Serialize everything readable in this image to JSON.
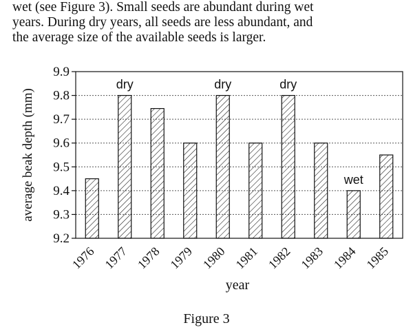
{
  "intro": {
    "lines": [
      "wet (see Figure 3). Small seeds are abundant during wet",
      "years. During dry years, all seeds are less abundant, and",
      "the average size of the available seeds is larger."
    ]
  },
  "caption": "Figure 3",
  "chart_data": {
    "type": "bar",
    "title": "",
    "xlabel": "year",
    "ylabel": "average beak depth (mm)",
    "ylim": [
      9.2,
      9.9
    ],
    "yticks": [
      "9.2",
      "9.3",
      "9.4",
      "9.5",
      "9.6",
      "9.7",
      "9.8",
      "9.9"
    ],
    "grid": true,
    "categories": [
      "1976",
      "1977",
      "1978",
      "1979",
      "1980",
      "1981",
      "1982",
      "1983",
      "1984",
      "1985"
    ],
    "values": [
      9.45,
      9.8,
      9.745,
      9.6,
      9.8,
      9.6,
      9.8,
      9.6,
      9.4,
      9.55
    ],
    "annotations": [
      {
        "category": "1977",
        "text": "dry"
      },
      {
        "category": "1980",
        "text": "dry"
      },
      {
        "category": "1982",
        "text": "dry"
      },
      {
        "category": "1984",
        "text": "wet"
      }
    ],
    "colors": {
      "bar_stroke": "#111111",
      "hatch": "#111111",
      "grid": "#555555"
    }
  }
}
